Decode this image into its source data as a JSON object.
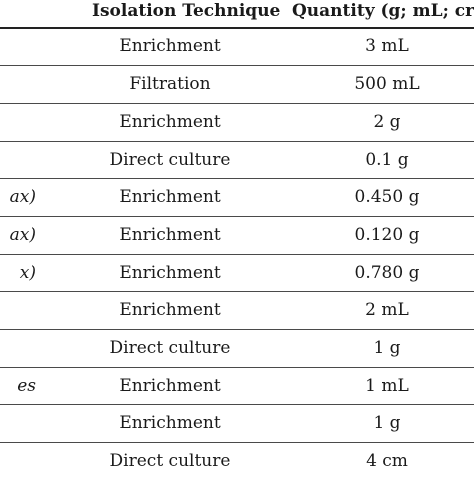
{
  "table": {
    "headers": {
      "technique": "Isolation Technique",
      "quantity": "Quantity (g; mL; cr"
    },
    "rows": [
      {
        "left": "",
        "technique": "Enrichment",
        "quantity": "3 mL"
      },
      {
        "left": "",
        "technique": "Filtration",
        "quantity": "500 mL"
      },
      {
        "left": "",
        "technique": "Enrichment",
        "quantity": "2 g"
      },
      {
        "left": "",
        "technique": "Direct culture",
        "quantity": "0.1 g"
      },
      {
        "left": "ax)",
        "technique": "Enrichment",
        "quantity": "0.450 g"
      },
      {
        "left": "ax)",
        "technique": "Enrichment",
        "quantity": "0.120 g"
      },
      {
        "left": "x)",
        "technique": "Enrichment",
        "quantity": "0.780 g"
      },
      {
        "left": "",
        "technique": "Enrichment",
        "quantity": "2 mL"
      },
      {
        "left": "",
        "technique": "Direct culture",
        "quantity": "1 g"
      },
      {
        "left": "es",
        "technique": "Enrichment",
        "quantity": "1 mL"
      },
      {
        "left": "",
        "technique": "Enrichment",
        "quantity": "1 g"
      },
      {
        "left": "",
        "technique": "Direct culture",
        "quantity": "4 cm"
      }
    ]
  }
}
